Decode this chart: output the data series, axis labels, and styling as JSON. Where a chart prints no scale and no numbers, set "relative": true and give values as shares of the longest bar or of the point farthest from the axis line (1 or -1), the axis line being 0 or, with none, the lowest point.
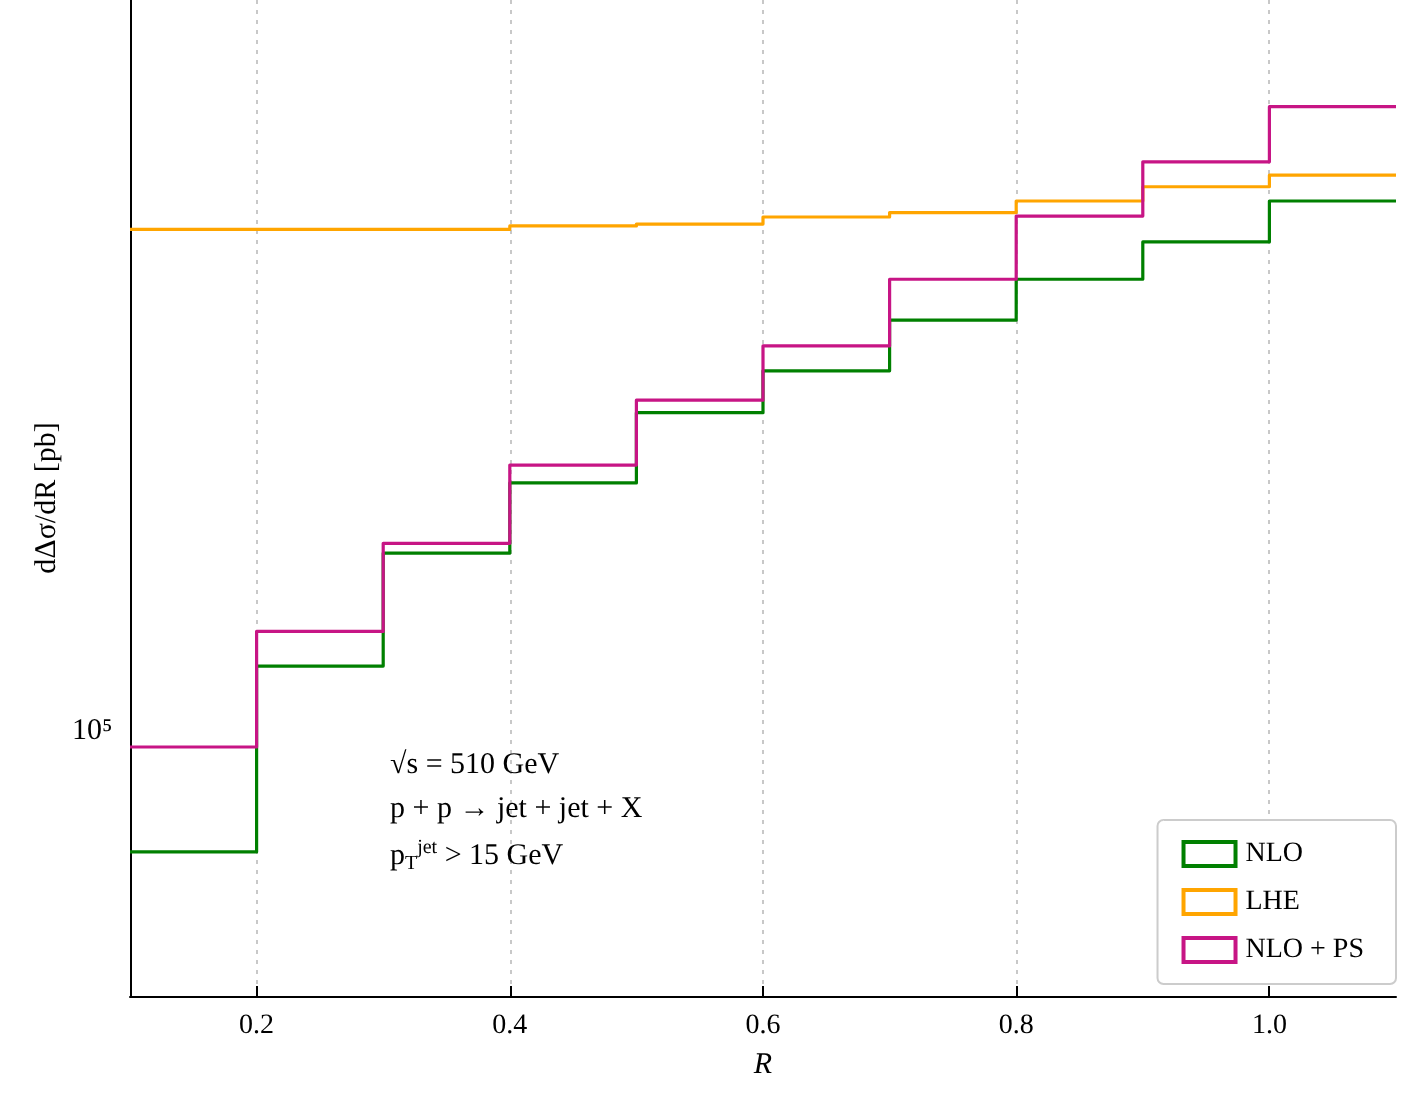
{
  "chart_data": {
    "type": "step",
    "xlabel": "R",
    "ylabel": "dΔσ/dR [pb]",
    "x": [
      0.1,
      0.2,
      0.3,
      0.4,
      0.5,
      0.6,
      0.7,
      0.8,
      0.9,
      1.0,
      1.1
    ],
    "relative": true,
    "series": [
      {
        "name": "NLO",
        "color": "#008000",
        "values": [
          0.162,
          0.371,
          0.498,
          0.577,
          0.656,
          0.703,
          0.76,
          0.806,
          0.848,
          0.894,
          0.894
        ]
      },
      {
        "name": "LHE",
        "color": "#ffa500",
        "values": [
          0.862,
          0.862,
          0.862,
          0.866,
          0.868,
          0.876,
          0.881,
          0.894,
          0.91,
          0.923,
          0.923
        ]
      },
      {
        "name": "NLO + PS",
        "color": "#c71585",
        "values": [
          0.28,
          0.41,
          0.509,
          0.597,
          0.67,
          0.731,
          0.806,
          0.877,
          0.938,
          1,
          1
        ]
      }
    ],
    "xlim": [
      0.1,
      1.1
    ],
    "xticks": [
      0.2,
      0.4,
      0.6,
      0.8,
      {
        "value": 1.0,
        "label": "1.0"
      }
    ],
    "grid": "x",
    "legend": "bottom right",
    "annotations": [
      "√s = 510 GeV",
      "p + p → jet + jet + X",
      "p$_{T}$$^{jet}$ > 15 GeV",
      "10⁵"
    ]
  }
}
